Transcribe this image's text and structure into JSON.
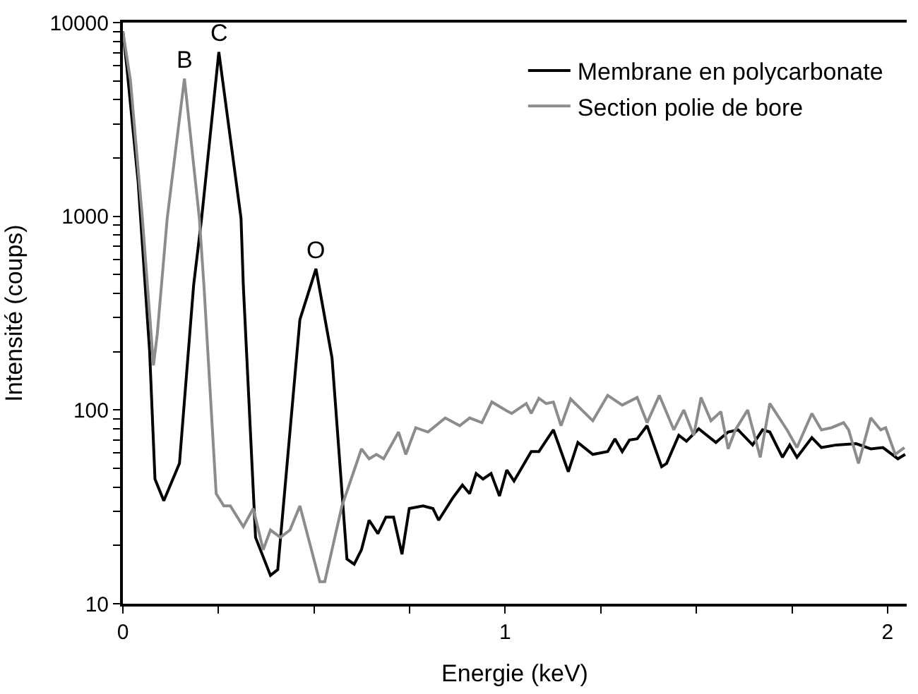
{
  "chart_data": {
    "type": "line",
    "xlabel": "Energie (keV)",
    "ylabel": "Intensité (coups)",
    "log": "y",
    "legend": "top right",
    "marker": "none",
    "line_style": "solid",
    "xlim": [
      0,
      2.05
    ],
    "xticks": [
      0,
      {
        "value": 0.25,
        "label": null
      },
      {
        "value": 0.5,
        "label": null
      },
      {
        "value": 0.75,
        "label": null
      },
      1,
      {
        "value": 1.25,
        "label": null
      },
      {
        "value": 1.5,
        "label": null
      },
      {
        "value": 1.75,
        "label": null
      },
      2
    ],
    "ylim": [
      10,
      10000
    ],
    "yticks": [
      10,
      {
        "value": 20,
        "label": null
      },
      {
        "value": 30,
        "label": null
      },
      {
        "value": 40,
        "label": null
      },
      {
        "value": 50,
        "label": null
      },
      {
        "value": 60,
        "label": null
      },
      {
        "value": 70,
        "label": null
      },
      {
        "value": 80,
        "label": null
      },
      {
        "value": 90,
        "label": null
      },
      100,
      {
        "value": 200,
        "label": null
      },
      {
        "value": 300,
        "label": null
      },
      {
        "value": 400,
        "label": null
      },
      {
        "value": 500,
        "label": null
      },
      {
        "value": 600,
        "label": null
      },
      {
        "value": 700,
        "label": null
      },
      {
        "value": 800,
        "label": null
      },
      {
        "value": 900,
        "label": null
      },
      1000,
      {
        "value": 2000,
        "label": null
      },
      {
        "value": 3000,
        "label": null
      },
      {
        "value": 4000,
        "label": null
      },
      {
        "value": 5000,
        "label": null
      },
      {
        "value": 6000,
        "label": null
      },
      {
        "value": 7000,
        "label": null
      },
      {
        "value": 8000,
        "label": null
      },
      {
        "value": 9000,
        "label": null
      },
      10000
    ],
    "annotations": [
      {
        "text": "B",
        "x": 0.161,
        "y": 5140
      },
      {
        "text": "C",
        "x": 0.251,
        "y": 7050
      },
      {
        "text": "O",
        "x": 0.505,
        "y": 536
      }
    ],
    "series": [
      {
        "name": "Membrane en polycarbonate",
        "color": "#000000",
        "x": [
          0,
          0.01,
          0.04,
          0.07,
          0.084,
          0.107,
          0.148,
          0.185,
          0.206,
          0.251,
          0.309,
          0.315,
          0.347,
          0.386,
          0.405,
          0.463,
          0.505,
          0.547,
          0.586,
          0.605,
          0.624,
          0.644,
          0.667,
          0.688,
          0.708,
          0.73,
          0.749,
          0.785,
          0.811,
          0.826,
          0.862,
          0.888,
          0.907,
          0.924,
          0.942,
          0.963,
          0.985,
          1.004,
          1.023,
          1.068,
          1.088,
          1.126,
          1.165,
          1.19,
          1.229,
          1.268,
          1.287,
          1.306,
          1.325,
          1.345,
          1.371,
          1.409,
          1.422,
          1.454,
          1.474,
          1.506,
          1.551,
          1.583,
          1.609,
          1.647,
          1.673,
          1.692,
          1.725,
          1.744,
          1.763,
          1.802,
          1.827,
          1.866,
          1.918,
          1.956,
          1.988,
          2.027,
          2.046
        ],
        "values": [
          9000,
          6000,
          1500,
          200,
          44,
          34,
          53,
          440,
          977,
          7050,
          977,
          440,
          22,
          14,
          15,
          293,
          536,
          186,
          17,
          16,
          19,
          27,
          23,
          28,
          28,
          18,
          31,
          32,
          31,
          27,
          35,
          41,
          37,
          47,
          44,
          47,
          36,
          49,
          43,
          61,
          61,
          79,
          48,
          68,
          59,
          61,
          71,
          61,
          70,
          71,
          83,
          51,
          53,
          74,
          69,
          80,
          68,
          77,
          79,
          66,
          79,
          77,
          57,
          66,
          57,
          72,
          64,
          66,
          67,
          63,
          64,
          56,
          59
        ]
      },
      {
        "name": "Section polie de bore",
        "color": "#8c8c8c",
        "x": [
          0,
          0.02,
          0.051,
          0.08,
          0.09,
          0.116,
          0.161,
          0.2,
          0.212,
          0.244,
          0.264,
          0.281,
          0.315,
          0.341,
          0.367,
          0.386,
          0.412,
          0.437,
          0.463,
          0.515,
          0.528,
          0.573,
          0.624,
          0.644,
          0.663,
          0.682,
          0.721,
          0.74,
          0.766,
          0.798,
          0.843,
          0.881,
          0.907,
          0.939,
          0.965,
          1.004,
          1.017,
          1.055,
          1.068,
          1.088,
          1.107,
          1.126,
          1.146,
          1.171,
          1.229,
          1.268,
          1.306,
          1.345,
          1.371,
          1.403,
          1.441,
          1.467,
          1.493,
          1.512,
          1.538,
          1.564,
          1.583,
          1.602,
          1.634,
          1.667,
          1.692,
          1.737,
          1.763,
          1.802,
          1.827,
          1.853,
          1.885,
          1.898,
          1.924,
          1.956,
          1.982,
          1.995,
          2.02,
          2.044
        ],
        "values": [
          9000,
          5000,
          977,
          170,
          247,
          977,
          5140,
          977,
          440,
          37,
          32,
          32,
          25,
          31,
          19,
          24,
          22,
          24,
          32,
          13,
          13,
          32,
          63,
          56,
          59,
          56,
          77,
          59,
          81,
          77,
          91,
          83,
          91,
          86,
          110,
          99,
          96,
          108,
          96,
          115,
          108,
          110,
          83,
          114,
          88,
          119,
          106,
          116,
          86,
          119,
          79,
          100,
          74,
          116,
          88,
          98,
          63,
          79,
          100,
          57,
          108,
          79,
          64,
          96,
          79,
          81,
          86,
          79,
          53,
          91,
          79,
          81,
          59,
          64
        ]
      }
    ]
  }
}
